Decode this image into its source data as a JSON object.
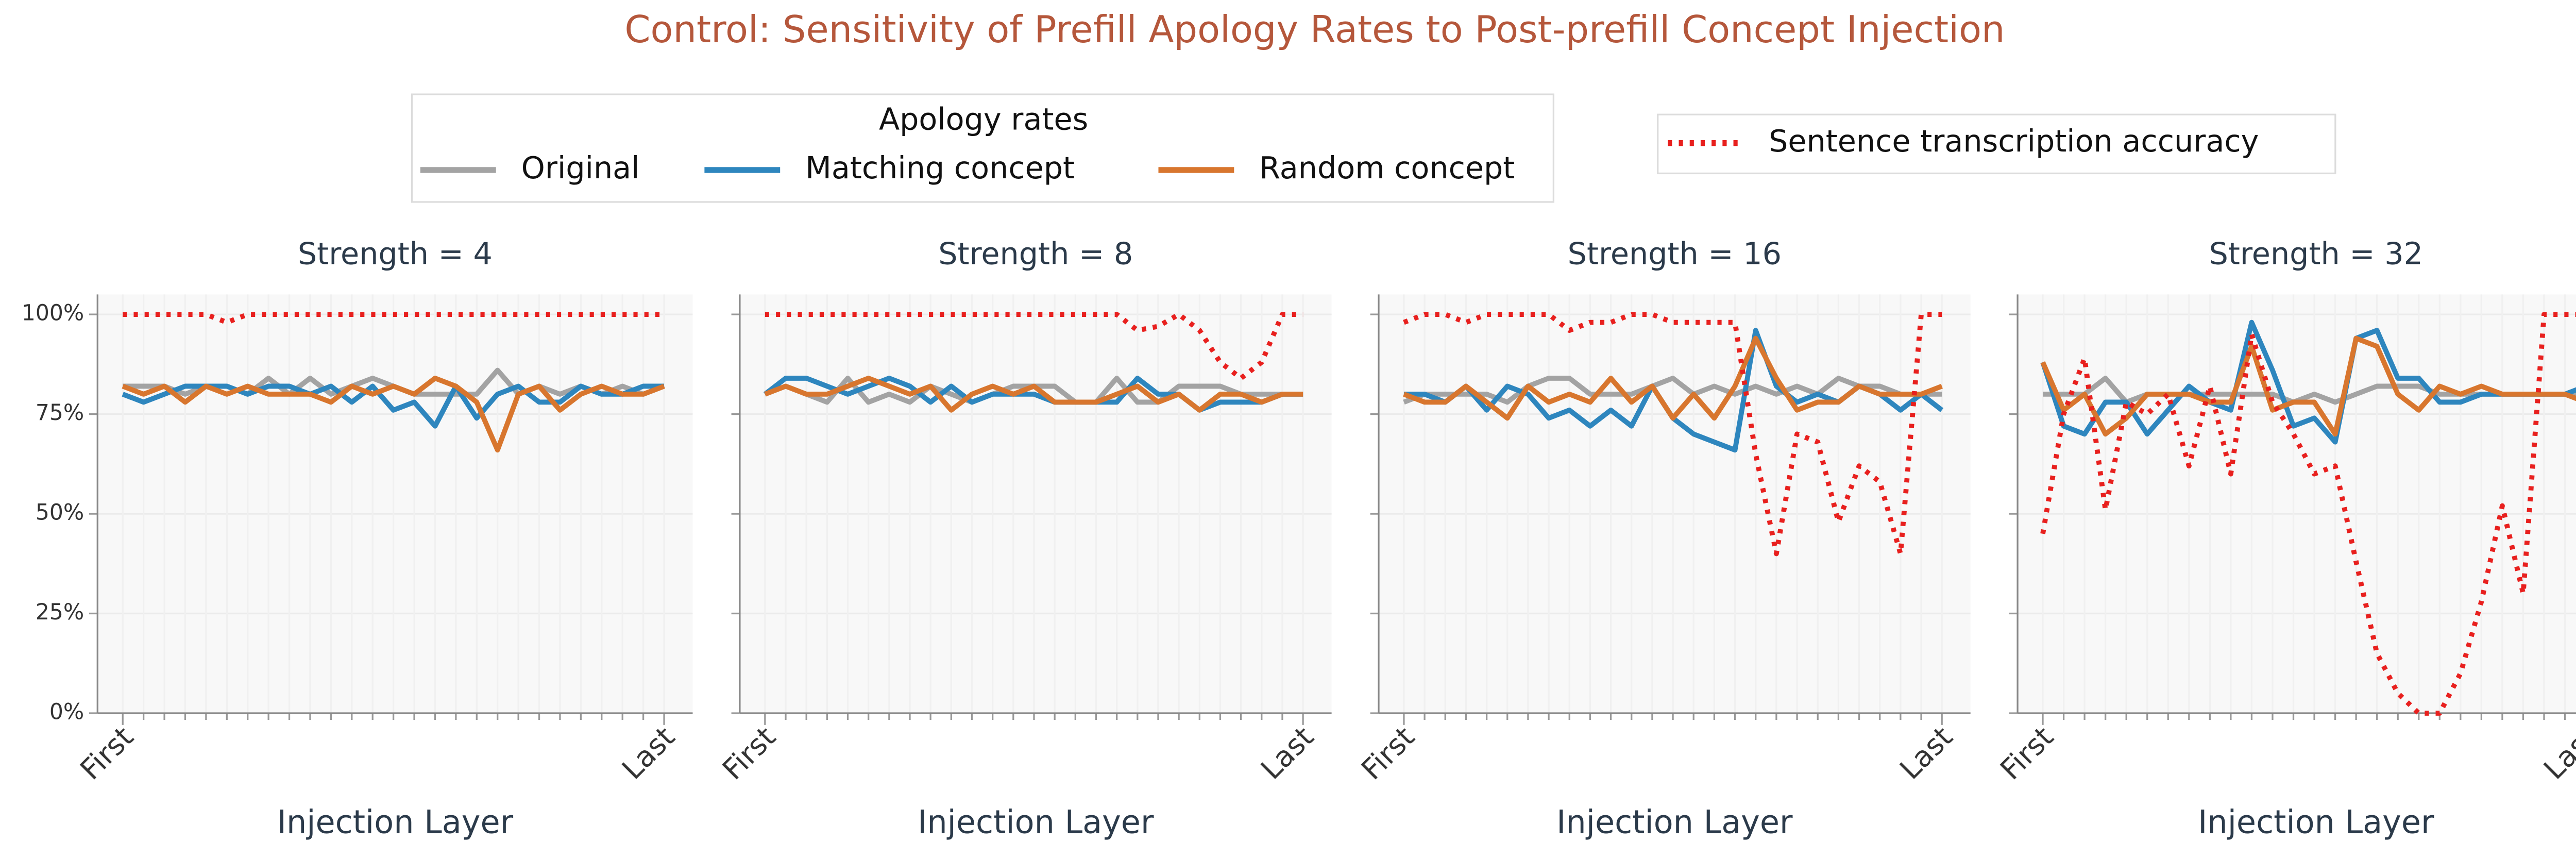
{
  "title": "Control: Sensitivity of Prefill Apology Rates to Post-prefill Concept Injection",
  "legend_title": "Apology rates",
  "chart_data": [
    {
      "type": "line",
      "title": "Strength = 4",
      "xlabel": "Injection Layer",
      "categories": [
        "First",
        null,
        null,
        null,
        null,
        null,
        null,
        null,
        null,
        null,
        null,
        null,
        null,
        null,
        null,
        null,
        null,
        null,
        null,
        null,
        null,
        null,
        null,
        null,
        null,
        null,
        "Last"
      ],
      "ylim": [
        0,
        105
      ],
      "yticks": [
        {
          "value": 0,
          "label": "0%"
        },
        {
          "value": 25,
          "label": "25%"
        },
        {
          "value": 50,
          "label": "50%"
        },
        {
          "value": 75,
          "label": "75%"
        },
        {
          "value": 100,
          "label": "100%"
        }
      ],
      "grid": true,
      "series": [
        {
          "name": "Original",
          "color": "#a3a3a3",
          "style": "solid",
          "values": [
            82,
            82,
            82,
            80,
            82,
            82,
            80,
            84,
            80,
            84,
            80,
            82,
            84,
            82,
            80,
            80,
            80,
            80,
            86,
            80,
            82,
            80,
            82,
            80,
            82,
            80,
            82
          ]
        },
        {
          "name": "Matching concept",
          "color": "#2e86be",
          "style": "solid",
          "values": [
            80,
            78,
            80,
            82,
            82,
            82,
            80,
            82,
            82,
            80,
            82,
            78,
            82,
            76,
            78,
            72,
            82,
            74,
            80,
            82,
            78,
            78,
            82,
            80,
            80,
            82,
            82
          ]
        },
        {
          "name": "Random concept",
          "color": "#d8762e",
          "style": "solid",
          "values": [
            82,
            80,
            82,
            78,
            82,
            80,
            82,
            80,
            80,
            80,
            78,
            82,
            80,
            82,
            80,
            84,
            82,
            78,
            66,
            80,
            82,
            76,
            80,
            82,
            80,
            80,
            82
          ]
        },
        {
          "name": "Sentence transcription accuracy",
          "color": "#e8201e",
          "style": "dotted",
          "values": [
            100,
            100,
            100,
            100,
            100,
            98,
            100,
            100,
            100,
            100,
            100,
            100,
            100,
            100,
            100,
            100,
            100,
            100,
            100,
            100,
            100,
            100,
            100,
            100,
            100,
            100,
            100
          ]
        }
      ]
    },
    {
      "type": "line",
      "title": "Strength = 8",
      "xlabel": "Injection Layer",
      "categories": [
        "First",
        null,
        null,
        null,
        null,
        null,
        null,
        null,
        null,
        null,
        null,
        null,
        null,
        null,
        null,
        null,
        null,
        null,
        null,
        null,
        null,
        null,
        null,
        null,
        null,
        null,
        "Last"
      ],
      "series": [
        {
          "name": "Original",
          "color": "#a3a3a3",
          "style": "solid",
          "values": [
            80,
            82,
            80,
            78,
            84,
            78,
            80,
            78,
            82,
            80,
            78,
            80,
            82,
            82,
            82,
            78,
            78,
            84,
            78,
            78,
            82,
            82,
            82,
            80,
            80,
            80,
            80
          ]
        },
        {
          "name": "Matching concept",
          "color": "#2e86be",
          "style": "solid",
          "values": [
            80,
            84,
            84,
            82,
            80,
            82,
            84,
            82,
            78,
            82,
            78,
            80,
            80,
            80,
            78,
            78,
            78,
            78,
            84,
            80,
            80,
            76,
            78,
            78,
            78,
            80,
            80
          ]
        },
        {
          "name": "Random concept",
          "color": "#d8762e",
          "style": "solid",
          "values": [
            80,
            82,
            80,
            80,
            82,
            84,
            82,
            80,
            82,
            76,
            80,
            82,
            80,
            82,
            78,
            78,
            78,
            80,
            82,
            78,
            80,
            76,
            80,
            80,
            78,
            80,
            80
          ]
        },
        {
          "name": "Sentence transcription accuracy",
          "color": "#e8201e",
          "style": "dotted",
          "values": [
            100,
            100,
            100,
            100,
            100,
            100,
            100,
            100,
            100,
            100,
            100,
            100,
            100,
            100,
            100,
            100,
            100,
            100,
            96,
            97,
            100,
            96,
            88,
            84,
            88,
            100,
            100
          ]
        }
      ]
    },
    {
      "type": "line",
      "title": "Strength = 16",
      "xlabel": "Injection Layer",
      "categories": [
        "First",
        null,
        null,
        null,
        null,
        null,
        null,
        null,
        null,
        null,
        null,
        null,
        null,
        null,
        null,
        null,
        null,
        null,
        null,
        null,
        null,
        null,
        null,
        null,
        null,
        null,
        "Last"
      ],
      "series": [
        {
          "name": "Original",
          "color": "#a3a3a3",
          "style": "solid",
          "values": [
            78,
            80,
            80,
            80,
            80,
            78,
            82,
            84,
            84,
            80,
            80,
            80,
            82,
            84,
            80,
            82,
            80,
            82,
            80,
            82,
            80,
            84,
            82,
            82,
            80,
            80,
            80
          ]
        },
        {
          "name": "Matching concept",
          "color": "#2e86be",
          "style": "solid",
          "values": [
            80,
            80,
            78,
            82,
            76,
            82,
            80,
            74,
            76,
            72,
            76,
            72,
            82,
            74,
            70,
            68,
            66,
            96,
            82,
            78,
            80,
            78,
            82,
            80,
            76,
            80,
            76
          ]
        },
        {
          "name": "Random concept",
          "color": "#d8762e",
          "style": "solid",
          "values": [
            80,
            78,
            78,
            82,
            78,
            74,
            82,
            78,
            80,
            78,
            84,
            78,
            82,
            74,
            80,
            74,
            82,
            94,
            84,
            76,
            78,
            78,
            82,
            80,
            80,
            80,
            82
          ]
        },
        {
          "name": "Sentence transcription accuracy",
          "color": "#e8201e",
          "style": "dotted",
          "values": [
            98,
            100,
            100,
            98,
            100,
            100,
            100,
            100,
            96,
            98,
            98,
            100,
            100,
            98,
            98,
            98,
            98,
            65,
            40,
            70,
            68,
            48,
            62,
            58,
            40,
            100,
            100
          ]
        }
      ]
    },
    {
      "type": "line",
      "title": "Strength = 32",
      "xlabel": "Injection Layer",
      "categories": [
        "First",
        null,
        null,
        null,
        null,
        null,
        null,
        null,
        null,
        null,
        null,
        null,
        null,
        null,
        null,
        null,
        null,
        null,
        null,
        null,
        null,
        null,
        null,
        null,
        null,
        null,
        "Last"
      ],
      "series": [
        {
          "name": "Original",
          "color": "#a3a3a3",
          "style": "solid",
          "values": [
            80,
            80,
            80,
            84,
            78,
            80,
            80,
            80,
            80,
            80,
            80,
            80,
            78,
            80,
            78,
            80,
            82,
            82,
            82,
            80,
            80,
            80,
            80,
            80,
            80,
            80,
            80
          ]
        },
        {
          "name": "Matching concept",
          "color": "#2e86be",
          "style": "solid",
          "values": [
            88,
            72,
            70,
            78,
            78,
            70,
            76,
            82,
            78,
            76,
            98,
            86,
            72,
            74,
            68,
            94,
            96,
            84,
            84,
            78,
            78,
            80,
            80,
            80,
            80,
            80,
            82
          ]
        },
        {
          "name": "Random concept",
          "color": "#d8762e",
          "style": "solid",
          "values": [
            88,
            76,
            80,
            70,
            74,
            80,
            80,
            80,
            78,
            78,
            92,
            76,
            78,
            78,
            70,
            94,
            92,
            80,
            76,
            82,
            80,
            82,
            80,
            80,
            80,
            80,
            78
          ]
        },
        {
          "name": "Sentence transcription accuracy",
          "color": "#e8201e",
          "style": "dotted",
          "values": [
            45,
            75,
            89,
            51,
            78,
            75,
            80,
            62,
            82,
            60,
            95,
            78,
            70,
            60,
            62,
            38,
            15,
            5,
            0,
            0,
            10,
            28,
            52,
            30,
            100,
            100,
            100
          ]
        }
      ]
    }
  ]
}
